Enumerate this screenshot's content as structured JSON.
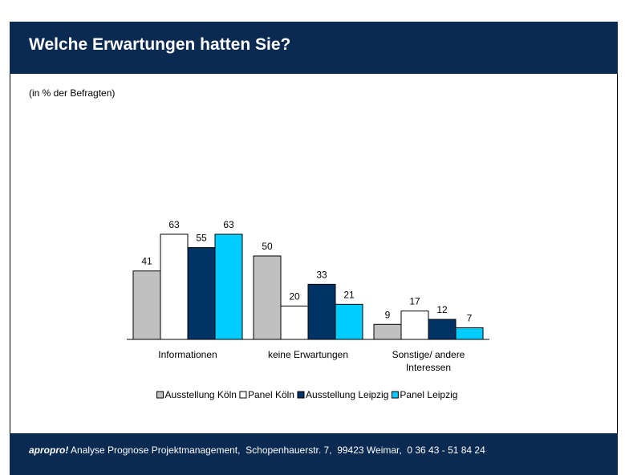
{
  "header": {
    "title": "Welche Erwartungen hatten Sie?"
  },
  "chart_data": {
    "type": "bar",
    "subtitle": "(in % der Befragten)",
    "categories": [
      "Informationen",
      "keine Erwartungen",
      "Sonstige/ andere Interessen"
    ],
    "series": [
      {
        "name": "Ausstellung Köln",
        "color": "#c0c0c0",
        "values": [
          41,
          50,
          9
        ]
      },
      {
        "name": "Panel Köln",
        "color": "#ffffff",
        "values": [
          63,
          20,
          17
        ]
      },
      {
        "name": "Ausstellung Leipzig",
        "color": "#003366",
        "values": [
          55,
          33,
          12
        ]
      },
      {
        "name": "Panel Leipzig",
        "color": "#00ccff",
        "values": [
          63,
          21,
          7
        ]
      }
    ],
    "ylim": [
      0,
      100
    ],
    "legend": "bottom"
  },
  "footer": {
    "brand": "apropro!",
    "text": "Analyse Prognose Projektmanagement,  Schopenhauerstr. 7,  99423 Weimar,  0 36 43 - 51 84 24"
  }
}
